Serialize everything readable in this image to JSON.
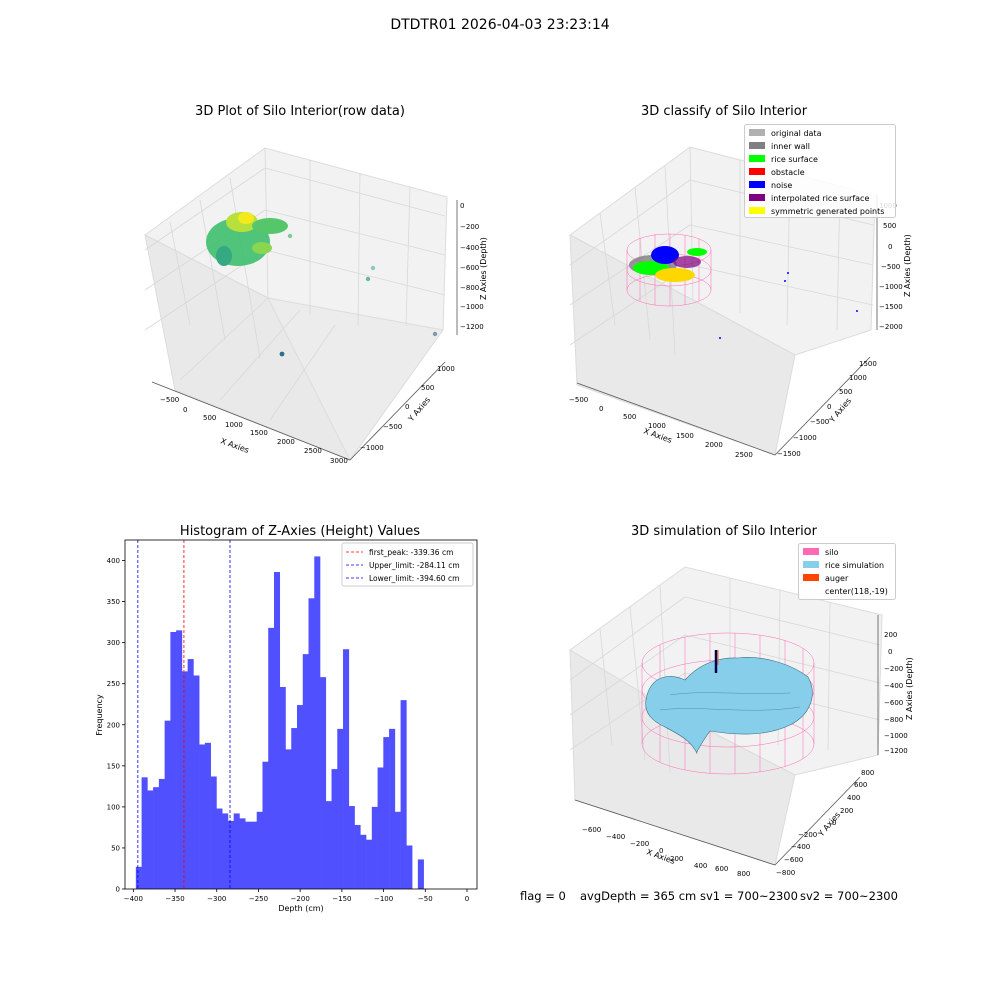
{
  "figure": {
    "suptitle": "DTDTR01 2026-04-03 23:23:14"
  },
  "panel_raw": {
    "title": "3D Plot of Silo Interior(row data)",
    "xlabel": "X Axies",
    "ylabel": "Y Axies",
    "zlabel": "Z Axies (Depth)",
    "xticks": [
      "−500",
      "0",
      "500",
      "1000",
      "1500",
      "2000",
      "2500",
      "3000"
    ],
    "yticks": [
      "−1000",
      "−500",
      "0",
      "500",
      "1000"
    ],
    "zticks": [
      "0",
      "−200",
      "−400",
      "−600",
      "−800",
      "−1000",
      "−1200"
    ]
  },
  "panel_classify": {
    "title": "3D classify of Silo Interior",
    "xlabel": "X Axies",
    "ylabel": "Y Axies",
    "zlabel": "Z Axies (Depth)",
    "xticks": [
      "−500",
      "0",
      "500",
      "1000",
      "1500",
      "2000",
      "2500"
    ],
    "yticks": [
      "−1500",
      "−1000",
      "−500",
      "0",
      "500",
      "1000",
      "1500"
    ],
    "zticks": [
      "1000",
      "500",
      "0",
      "−500",
      "−1000",
      "−1500",
      "−2000"
    ],
    "legend": [
      {
        "label": "original data",
        "color": "#b0b0b0"
      },
      {
        "label": "inner wall",
        "color": "#808080"
      },
      {
        "label": "rice surface",
        "color": "#00ff00"
      },
      {
        "label": "obstacle",
        "color": "#ff0000"
      },
      {
        "label": "noise",
        "color": "#0000ff"
      },
      {
        "label": "interpolated rice surface",
        "color": "#800080"
      },
      {
        "label": "symmetric generated points",
        "color": "#ffff00"
      }
    ]
  },
  "panel_hist": {
    "title": "Histogram of Z-Axies (Height) Values",
    "xlabel": "Depth (cm)",
    "ylabel": "Frequency",
    "bar_color": "#5050ff",
    "lines": [
      {
        "label": "first_peak: -339.36 cm",
        "x": -339.36,
        "color": "#ff0000"
      },
      {
        "label": "Upper_limit: -284.11 cm",
        "x": -284.11,
        "color": "#0000ff"
      },
      {
        "label": "Lower_limit: -394.60 cm",
        "x": -394.6,
        "color": "#0000ff"
      }
    ]
  },
  "panel_sim": {
    "title": "3D simulation of Silo Interior",
    "xlabel": "X Axies",
    "ylabel": "Y Axies",
    "zlabel": "Z Axies (Depth)",
    "xticks": [
      "−600",
      "−400",
      "−200",
      "0",
      "200",
      "400",
      "600",
      "800"
    ],
    "yticks": [
      "−800",
      "−600",
      "−400",
      "−200",
      "0",
      "200",
      "400",
      "600",
      "800"
    ],
    "zticks": [
      "200",
      "0",
      "−200",
      "−400",
      "−600",
      "−800",
      "−1000",
      "−1200"
    ],
    "legend": [
      {
        "label": "silo",
        "color": "#ff69b4"
      },
      {
        "label": "rice simulation",
        "color": "#87ceeb"
      },
      {
        "label": "auger",
        "color": "#ff4500"
      },
      {
        "label": "center(118,-19)",
        "color": ""
      }
    ]
  },
  "footer": {
    "flag": "flag = 0",
    "avg_depth": "avgDepth = 365 cm",
    "sv1": "sv1 = 700~2300",
    "sv2": "sv2 = 700~2300"
  },
  "chart_data": {
    "type": "bar",
    "title": "Histogram of Z-Axies (Height) Values",
    "xlabel": "Depth (cm)",
    "ylabel": "Frequency",
    "xlim": [
      -410,
      12
    ],
    "ylim": [
      0,
      425
    ],
    "xticks": [
      -400,
      -350,
      -300,
      -250,
      -200,
      -150,
      -100,
      -50,
      0
    ],
    "yticks": [
      0,
      50,
      100,
      150,
      200,
      250,
      300,
      350,
      400
    ],
    "bin_start": -397,
    "bin_width": 6.9,
    "values": [
      27,
      136,
      120,
      124,
      134,
      205,
      313,
      315,
      265,
      280,
      260,
      176,
      178,
      137,
      98,
      92,
      83,
      92,
      86,
      82,
      82,
      94,
      155,
      318,
      386,
      246,
      170,
      196,
      224,
      286,
      354,
      405,
      258,
      107,
      146,
      195,
      292,
      101,
      78,
      66,
      60,
      100,
      148,
      185,
      195,
      94,
      230,
      53,
      0,
      36
    ]
  }
}
